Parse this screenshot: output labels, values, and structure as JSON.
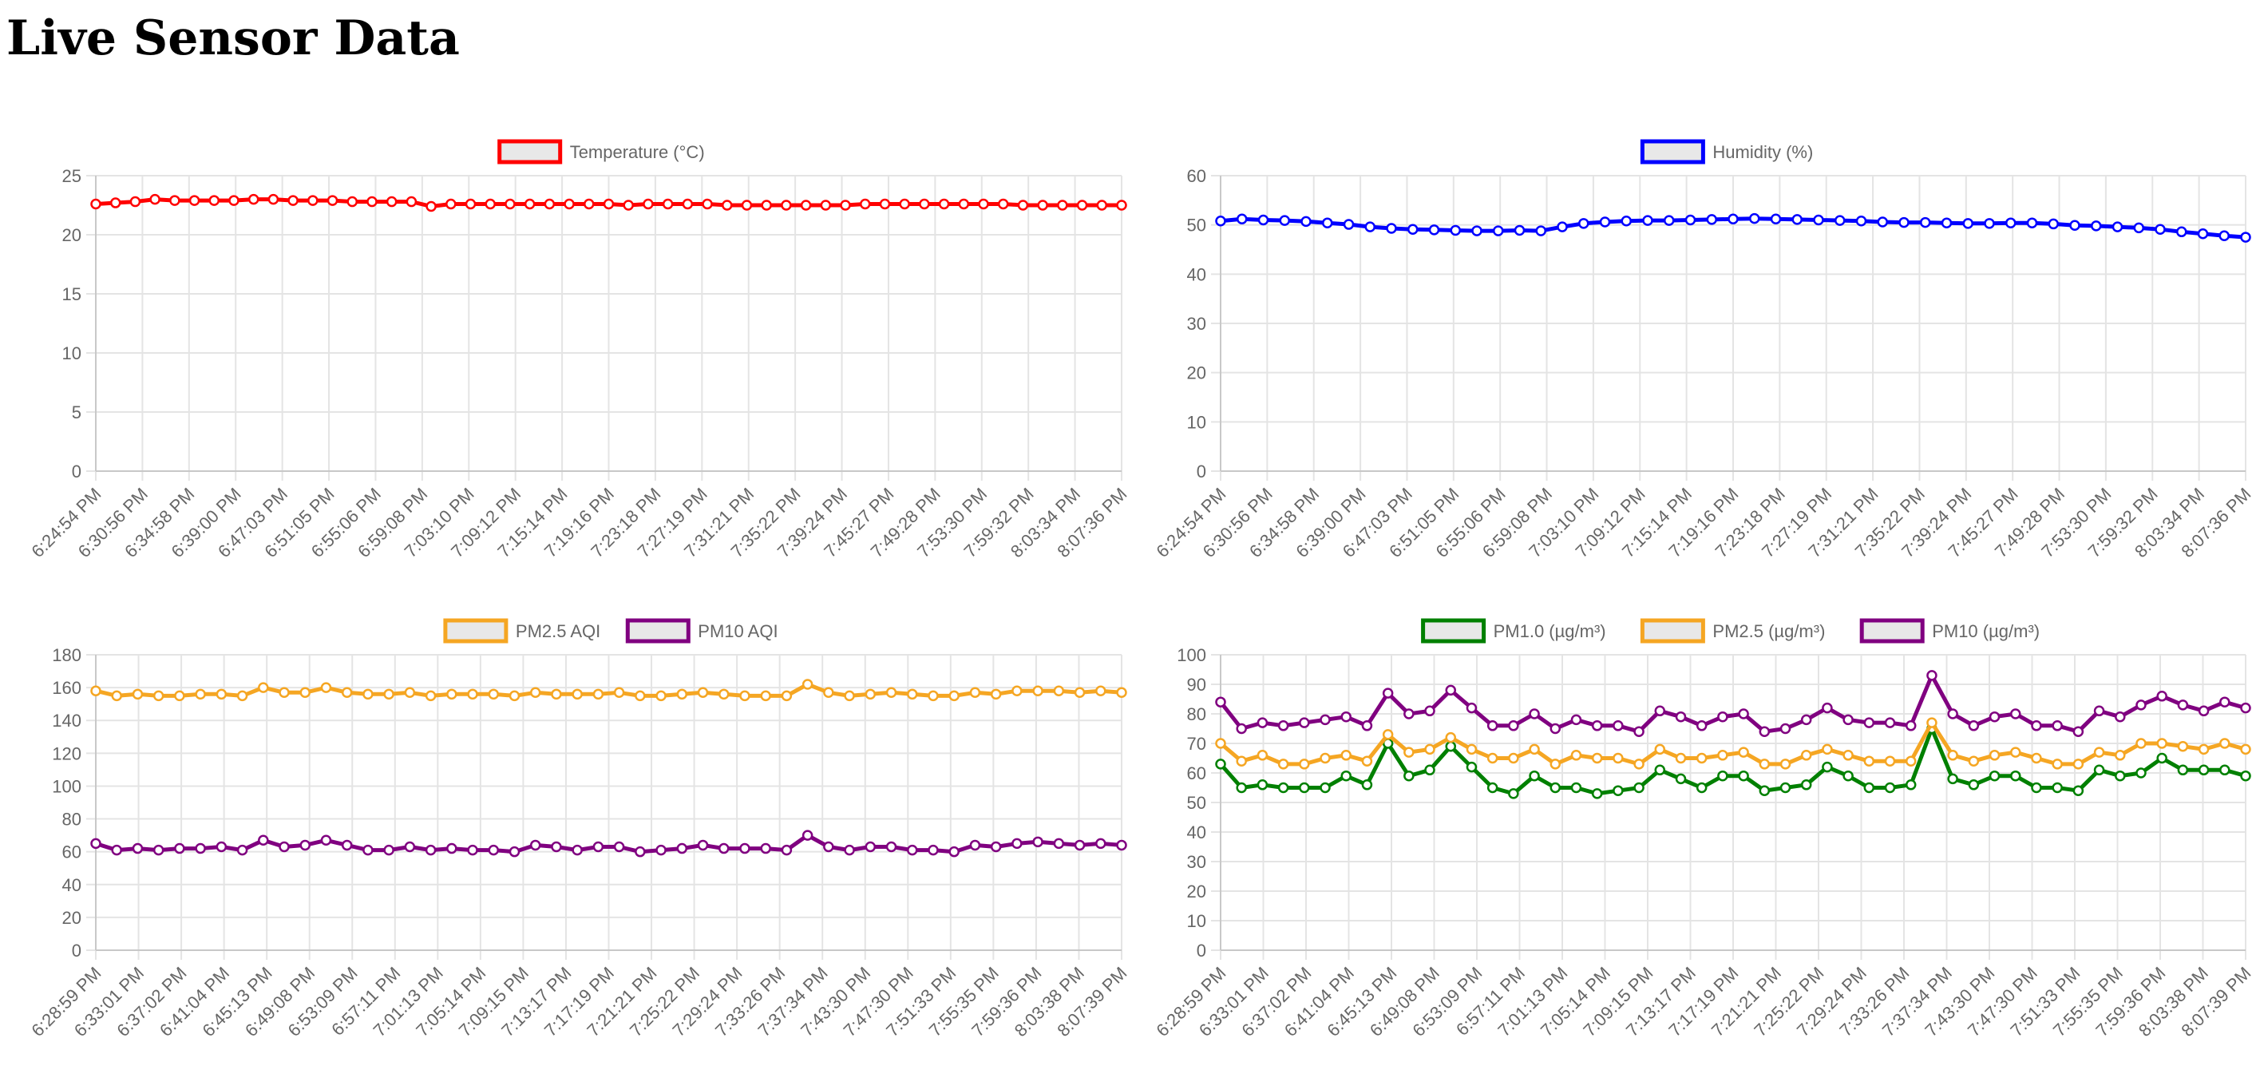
{
  "page": {
    "title": "Live Sensor Data"
  },
  "chart_data": [
    {
      "id": "chart-temp",
      "type": "line",
      "title": "",
      "xlabel": "",
      "ylabel": "",
      "ylim": [
        0,
        25
      ],
      "yticks": [
        0,
        5,
        10,
        15,
        20,
        25
      ],
      "grid": true,
      "legend_position": "top-center",
      "x_tick_labels": [
        "6:24:54 PM",
        "6:30:56 PM",
        "6:34:58 PM",
        "6:39:00 PM",
        "6:47:03 PM",
        "6:51:05 PM",
        "6:55:06 PM",
        "6:59:08 PM",
        "7:03:10 PM",
        "7:09:12 PM",
        "7:15:14 PM",
        "7:19:16 PM",
        "7:23:18 PM",
        "7:27:19 PM",
        "7:31:21 PM",
        "7:35:22 PM",
        "7:39:24 PM",
        "7:45:27 PM",
        "7:49:28 PM",
        "7:53:30 PM",
        "7:59:32 PM",
        "8:03:34 PM",
        "8:07:36 PM"
      ],
      "series": [
        {
          "name": "Temperature (°C)",
          "color": "#ff0000",
          "values": [
            22.6,
            22.7,
            22.8,
            23.0,
            22.9,
            22.9,
            22.9,
            22.9,
            23.0,
            23.0,
            22.9,
            22.9,
            22.9,
            22.8,
            22.8,
            22.8,
            22.8,
            22.4,
            22.6,
            22.6,
            22.6,
            22.6,
            22.6,
            22.6,
            22.6,
            22.6,
            22.6,
            22.5,
            22.6,
            22.6,
            22.6,
            22.6,
            22.5,
            22.5,
            22.5,
            22.5,
            22.5,
            22.5,
            22.5,
            22.6,
            22.6,
            22.6,
            22.6,
            22.6,
            22.6,
            22.6,
            22.6,
            22.5,
            22.5,
            22.5,
            22.5,
            22.5,
            22.5
          ]
        }
      ]
    },
    {
      "id": "chart-hum",
      "type": "line",
      "title": "",
      "xlabel": "",
      "ylabel": "",
      "ylim": [
        0,
        60
      ],
      "yticks": [
        0,
        10,
        20,
        30,
        40,
        50,
        60
      ],
      "grid": true,
      "legend_position": "top-center",
      "x_tick_labels": [
        "6:24:54 PM",
        "6:30:56 PM",
        "6:34:58 PM",
        "6:39:00 PM",
        "6:47:03 PM",
        "6:51:05 PM",
        "6:55:06 PM",
        "6:59:08 PM",
        "7:03:10 PM",
        "7:09:12 PM",
        "7:15:14 PM",
        "7:19:16 PM",
        "7:23:18 PM",
        "7:27:19 PM",
        "7:31:21 PM",
        "7:35:22 PM",
        "7:39:24 PM",
        "7:45:27 PM",
        "7:49:28 PM",
        "7:53:30 PM",
        "7:59:32 PM",
        "8:03:34 PM",
        "8:07:36 PM"
      ],
      "series": [
        {
          "name": "Humidity (%)",
          "color": "#0000ff",
          "values": [
            50.8,
            51.2,
            51.0,
            50.9,
            50.7,
            50.4,
            50.1,
            49.6,
            49.3,
            49.1,
            49.0,
            48.9,
            48.8,
            48.8,
            48.9,
            48.8,
            49.6,
            50.3,
            50.6,
            50.8,
            50.9,
            50.9,
            51.0,
            51.1,
            51.2,
            51.3,
            51.2,
            51.1,
            51.0,
            50.9,
            50.8,
            50.6,
            50.5,
            50.5,
            50.4,
            50.3,
            50.3,
            50.4,
            50.4,
            50.2,
            49.9,
            49.8,
            49.6,
            49.4,
            49.1,
            48.6,
            48.2,
            47.8,
            47.5
          ]
        }
      ]
    },
    {
      "id": "chart-aqi",
      "type": "line",
      "title": "",
      "xlabel": "",
      "ylabel": "",
      "ylim": [
        0,
        180
      ],
      "yticks": [
        0,
        20,
        40,
        60,
        80,
        100,
        120,
        140,
        160,
        180
      ],
      "grid": true,
      "legend_position": "top-center",
      "x_tick_labels": [
        "6:28:59 PM",
        "6:33:01 PM",
        "6:37:02 PM",
        "6:41:04 PM",
        "6:45:13 PM",
        "6:49:08 PM",
        "6:53:09 PM",
        "6:57:11 PM",
        "7:01:13 PM",
        "7:05:14 PM",
        "7:09:15 PM",
        "7:13:17 PM",
        "7:17:19 PM",
        "7:21:21 PM",
        "7:25:22 PM",
        "7:29:24 PM",
        "7:33:26 PM",
        "7:37:34 PM",
        "7:43:30 PM",
        "7:47:30 PM",
        "7:51:33 PM",
        "7:55:35 PM",
        "7:59:36 PM",
        "8:03:38 PM",
        "8:07:39 PM"
      ],
      "series": [
        {
          "name": "PM2.5 AQI",
          "color": "#f5a623",
          "values": [
            158,
            155,
            156,
            155,
            155,
            156,
            156,
            155,
            160,
            157,
            157,
            160,
            157,
            156,
            156,
            157,
            155,
            156,
            156,
            156,
            155,
            157,
            156,
            156,
            156,
            157,
            155,
            155,
            156,
            157,
            156,
            155,
            155,
            155,
            162,
            157,
            155,
            156,
            157,
            156,
            155,
            155,
            157,
            156,
            158,
            158,
            158,
            157,
            158,
            157
          ]
        },
        {
          "name": "PM10 AQI",
          "color": "#800080",
          "values": [
            65,
            61,
            62,
            61,
            62,
            62,
            63,
            61,
            67,
            63,
            64,
            67,
            64,
            61,
            61,
            63,
            61,
            62,
            61,
            61,
            60,
            64,
            63,
            61,
            63,
            63,
            60,
            61,
            62,
            64,
            62,
            62,
            62,
            61,
            70,
            63,
            61,
            63,
            63,
            61,
            61,
            60,
            64,
            63,
            65,
            66,
            65,
            64,
            65,
            64
          ]
        }
      ]
    },
    {
      "id": "chart-pm",
      "type": "line",
      "title": "",
      "xlabel": "",
      "ylabel": "",
      "ylim": [
        0,
        100
      ],
      "yticks": [
        0,
        10,
        20,
        30,
        40,
        50,
        60,
        70,
        80,
        90,
        100
      ],
      "grid": true,
      "legend_position": "top-center",
      "x_tick_labels": [
        "6:28:59 PM",
        "6:33:01 PM",
        "6:37:02 PM",
        "6:41:04 PM",
        "6:45:13 PM",
        "6:49:08 PM",
        "6:53:09 PM",
        "6:57:11 PM",
        "7:01:13 PM",
        "7:05:14 PM",
        "7:09:15 PM",
        "7:13:17 PM",
        "7:17:19 PM",
        "7:21:21 PM",
        "7:25:22 PM",
        "7:29:24 PM",
        "7:33:26 PM",
        "7:37:34 PM",
        "7:43:30 PM",
        "7:47:30 PM",
        "7:51:33 PM",
        "7:55:35 PM",
        "7:59:36 PM",
        "8:03:38 PM",
        "8:07:39 PM"
      ],
      "series": [
        {
          "name": "PM1.0 (µg/m³)",
          "color": "#008000",
          "values": [
            63,
            55,
            56,
            55,
            55,
            55,
            59,
            56,
            70,
            59,
            61,
            69,
            62,
            55,
            53,
            59,
            55,
            55,
            53,
            54,
            55,
            61,
            58,
            55,
            59,
            59,
            54,
            55,
            56,
            62,
            59,
            55,
            55,
            56,
            75,
            58,
            56,
            59,
            59,
            55,
            55,
            54,
            61,
            59,
            60,
            65,
            61,
            61,
            61,
            59
          ]
        },
        {
          "name": "PM2.5 (µg/m³)",
          "color": "#f5a623",
          "values": [
            70,
            64,
            66,
            63,
            63,
            65,
            66,
            64,
            73,
            67,
            68,
            72,
            68,
            65,
            65,
            68,
            63,
            66,
            65,
            65,
            63,
            68,
            65,
            65,
            66,
            67,
            63,
            63,
            66,
            68,
            66,
            64,
            64,
            64,
            77,
            66,
            64,
            66,
            67,
            65,
            63,
            63,
            67,
            66,
            70,
            70,
            69,
            68,
            70,
            68
          ]
        },
        {
          "name": "PM10 (µg/m³)",
          "color": "#800080",
          "values": [
            84,
            75,
            77,
            76,
            77,
            78,
            79,
            76,
            87,
            80,
            81,
            88,
            82,
            76,
            76,
            80,
            75,
            78,
            76,
            76,
            74,
            81,
            79,
            76,
            79,
            80,
            74,
            75,
            78,
            82,
            78,
            77,
            77,
            76,
            93,
            80,
            76,
            79,
            80,
            76,
            76,
            74,
            81,
            79,
            83,
            86,
            83,
            81,
            84,
            82
          ]
        }
      ]
    }
  ]
}
